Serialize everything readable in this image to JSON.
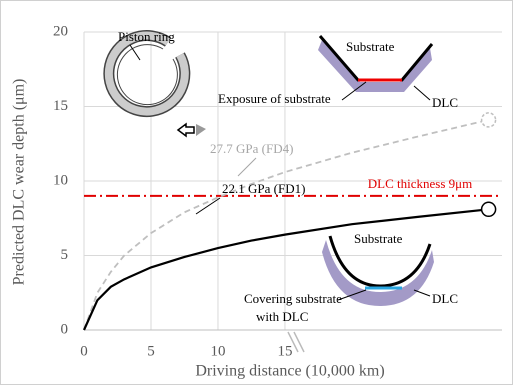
{
  "chart_data": {
    "type": "line",
    "x_label": "Driving distance (10,000 km)",
    "y_label": "Predicted DLC wear depth (μm)",
    "x": [
      0,
      1,
      2,
      3,
      5,
      7.5,
      10,
      12.5,
      15,
      20,
      25,
      30.2
    ],
    "series": [
      {
        "name": "27.7 GPa (FD4)",
        "color": "#bfbfbf",
        "dash": true,
        "values": [
          0,
          2.5,
          3.9,
          5.0,
          6.5,
          7.9,
          8.9,
          9.8,
          10.6,
          11.9,
          13.0,
          14.1
        ]
      },
      {
        "name": "22.1 GPa (FD1)",
        "color": "#000000",
        "dash": false,
        "values": [
          0,
          2.0,
          2.9,
          3.4,
          4.2,
          4.9,
          5.5,
          6.0,
          6.4,
          7.1,
          7.6,
          8.1
        ]
      }
    ],
    "threshold": {
      "value": 9,
      "label": "DLC thickness 9μm",
      "color": "#e00000"
    },
    "xlim": [
      0,
      31.2
    ],
    "xticks": [
      0,
      5,
      10,
      15
    ],
    "ylim": [
      0,
      20
    ],
    "yticks": [
      0,
      5,
      10,
      15,
      20
    ],
    "grid": true,
    "annotations": [
      "Piston ring",
      "Substrate",
      "Exposure of substrate",
      "DLC",
      "Substrate",
      "Covering substrate",
      "with DLC",
      "DLC"
    ]
  }
}
